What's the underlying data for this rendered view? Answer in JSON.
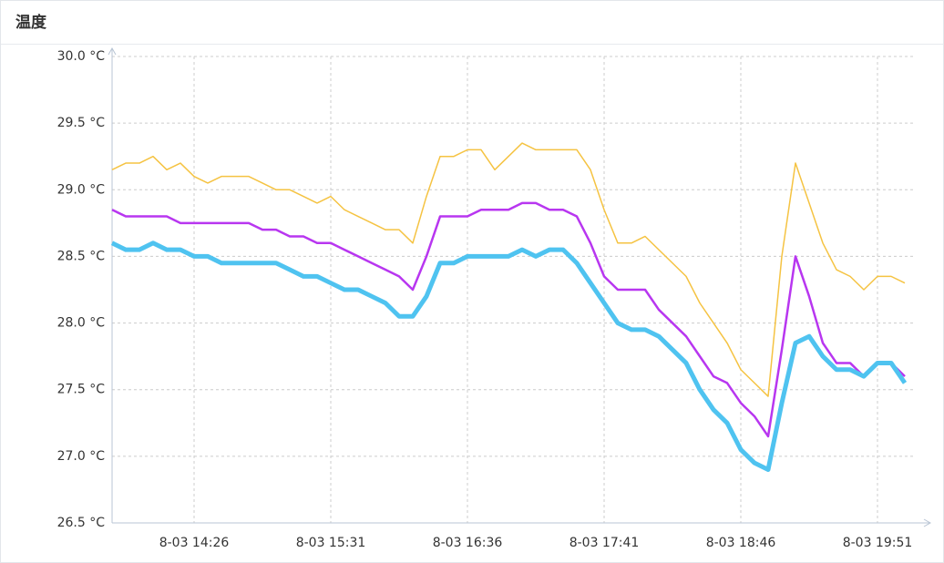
{
  "header": {
    "title": "温度"
  },
  "chart_data": {
    "type": "line",
    "grid": true,
    "categories": [
      null,
      null,
      null,
      null,
      null,
      null,
      "8-03 14:26",
      null,
      null,
      null,
      null,
      null,
      null,
      null,
      null,
      null,
      "8-03 15:31",
      null,
      null,
      null,
      null,
      null,
      null,
      null,
      null,
      null,
      "8-03 16:36",
      null,
      null,
      null,
      null,
      null,
      null,
      null,
      null,
      null,
      "8-03 17:41",
      null,
      null,
      null,
      null,
      null,
      null,
      null,
      null,
      null,
      "8-03 18:46",
      null,
      null,
      null,
      null,
      null,
      null,
      null,
      null,
      null,
      "8-03 19:51",
      null,
      null
    ],
    "ylim": [
      26.5,
      30.0
    ],
    "yticks": [
      {
        "value": 26.5,
        "label": "26.5 °C"
      },
      {
        "value": 27.0,
        "label": "27.0 °C"
      },
      {
        "value": 27.5,
        "label": "27.5 °C"
      },
      {
        "value": 28.0,
        "label": "28.0 °C"
      },
      {
        "value": 28.5,
        "label": "28.5 °C"
      },
      {
        "value": 29.0,
        "label": "29.0 °C"
      },
      {
        "value": 29.5,
        "label": "29.5 °C"
      },
      {
        "value": 30.0,
        "label": "30.0 °C"
      }
    ],
    "series": [
      {
        "color": "#f5c342",
        "width": 1.5,
        "values": [
          29.15,
          29.2,
          29.2,
          29.25,
          29.15,
          29.2,
          29.1,
          29.05,
          29.1,
          29.1,
          29.1,
          29.05,
          29.0,
          29.0,
          28.95,
          28.9,
          28.95,
          28.85,
          28.8,
          28.75,
          28.7,
          28.7,
          28.6,
          28.95,
          29.25,
          29.25,
          29.3,
          29.3,
          29.15,
          29.25,
          29.35,
          29.3,
          29.3,
          29.3,
          29.3,
          29.15,
          28.85,
          28.6,
          28.6,
          28.65,
          28.55,
          28.45,
          28.35,
          28.15,
          28.0,
          27.85,
          27.65,
          27.55,
          27.45,
          28.5,
          29.2,
          28.9,
          28.6,
          28.4,
          28.35,
          28.25,
          28.35,
          28.35,
          28.3
        ]
      },
      {
        "color": "#b836f0",
        "width": 2.5,
        "values": [
          28.85,
          28.8,
          28.8,
          28.8,
          28.8,
          28.75,
          28.75,
          28.75,
          28.75,
          28.75,
          28.75,
          28.7,
          28.7,
          28.65,
          28.65,
          28.6,
          28.6,
          28.55,
          28.5,
          28.45,
          28.4,
          28.35,
          28.25,
          28.5,
          28.8,
          28.8,
          28.8,
          28.85,
          28.85,
          28.85,
          28.9,
          28.9,
          28.85,
          28.85,
          28.8,
          28.6,
          28.35,
          28.25,
          28.25,
          28.25,
          28.1,
          28.0,
          27.9,
          27.75,
          27.6,
          27.55,
          27.4,
          27.3,
          27.15,
          27.8,
          28.5,
          28.2,
          27.85,
          27.7,
          27.7,
          27.6,
          27.7,
          27.7,
          27.6
        ]
      },
      {
        "color": "#4fc3f0",
        "width": 5,
        "values": [
          28.6,
          28.55,
          28.55,
          28.6,
          28.55,
          28.55,
          28.5,
          28.5,
          28.45,
          28.45,
          28.45,
          28.45,
          28.45,
          28.4,
          28.35,
          28.35,
          28.3,
          28.25,
          28.25,
          28.2,
          28.15,
          28.05,
          28.05,
          28.2,
          28.45,
          28.45,
          28.5,
          28.5,
          28.5,
          28.5,
          28.55,
          28.5,
          28.55,
          28.55,
          28.45,
          28.3,
          28.15,
          28.0,
          27.95,
          27.95,
          27.9,
          27.8,
          27.7,
          27.5,
          27.35,
          27.25,
          27.05,
          26.95,
          26.9,
          27.4,
          27.85,
          27.9,
          27.75,
          27.65,
          27.65,
          27.6,
          27.7,
          27.7,
          27.55
        ]
      }
    ]
  }
}
